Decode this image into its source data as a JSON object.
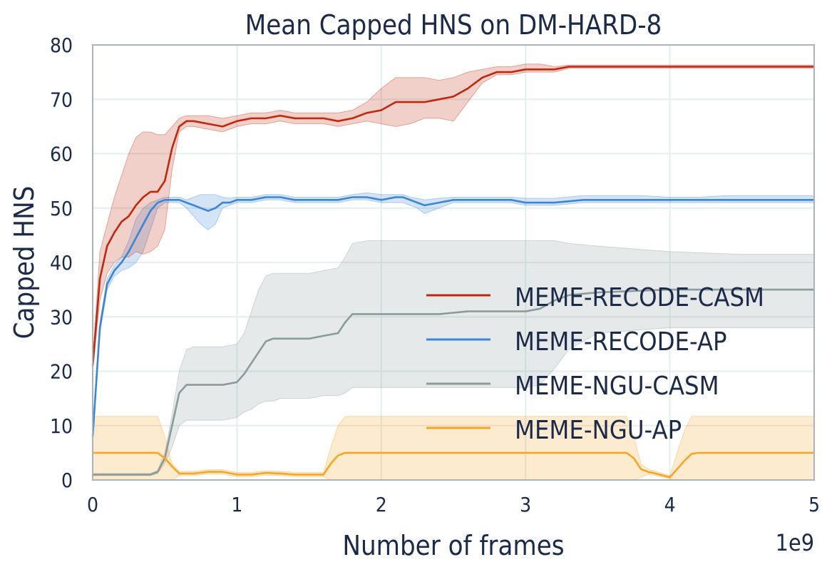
{
  "chart_data": {
    "type": "line",
    "title": "Mean Capped HNS on DM-HARD-8",
    "xlabel": "Number of frames",
    "ylabel": "Capped HNS",
    "x_scale_label": "1e9",
    "xlim": [
      0,
      5
    ],
    "ylim": [
      0,
      80
    ],
    "x_ticks": [
      0,
      1,
      2,
      3,
      4,
      5
    ],
    "y_ticks": [
      0,
      10,
      20,
      30,
      40,
      50,
      60,
      70,
      80
    ],
    "grid": true,
    "legend_position": "center-right",
    "series": [
      {
        "name": "MEME-RECODE-CASM",
        "color": "#c0280e",
        "x": [
          0,
          0.05,
          0.1,
          0.15,
          0.2,
          0.25,
          0.3,
          0.35,
          0.4,
          0.45,
          0.5,
          0.55,
          0.6,
          0.65,
          0.7,
          0.8,
          0.9,
          1.0,
          1.1,
          1.2,
          1.3,
          1.4,
          1.5,
          1.6,
          1.7,
          1.8,
          1.9,
          2.0,
          2.1,
          2.2,
          2.3,
          2.4,
          2.5,
          2.6,
          2.7,
          2.8,
          2.9,
          3.0,
          3.1,
          3.2,
          3.3,
          3.5,
          4.0,
          4.5,
          5.0
        ],
        "values": [
          21,
          37,
          43,
          45.5,
          47.5,
          48.5,
          50.5,
          52,
          53,
          53,
          55,
          61,
          65,
          66,
          66,
          65.5,
          65,
          66,
          66.5,
          66.5,
          67,
          66.5,
          66.5,
          66.5,
          66,
          66.5,
          67.5,
          68,
          69.5,
          69.5,
          69.5,
          70,
          70.5,
          72,
          74,
          75,
          75,
          75.5,
          75.5,
          75.5,
          76,
          76,
          76,
          76,
          76
        ],
        "upper": [
          22,
          42,
          47,
          52,
          56,
          60,
          63,
          64,
          64,
          63.5,
          63.5,
          65,
          66.5,
          67,
          67,
          67,
          66.5,
          67,
          67.5,
          67.5,
          68,
          67.5,
          67.5,
          67.5,
          67.5,
          68,
          69.5,
          72,
          74,
          74,
          74,
          73.5,
          74,
          75,
          75.5,
          76,
          76,
          76.5,
          76.5,
          76,
          76.3,
          76.3,
          76.3,
          76.3,
          76.3
        ],
        "lower": [
          20,
          33,
          38,
          40,
          41,
          41,
          42,
          41.5,
          42,
          43,
          46,
          57,
          64,
          65,
          65,
          64.5,
          64,
          65,
          65.5,
          65.5,
          66,
          65.5,
          65.5,
          65.5,
          65,
          65.5,
          66,
          65.5,
          65,
          65.5,
          66.5,
          66.5,
          66,
          69.5,
          73,
          74.5,
          74.5,
          75,
          75,
          75,
          75.7,
          75.7,
          75.7,
          75.7,
          75.7
        ]
      },
      {
        "name": "MEME-RECODE-AP",
        "color": "#3a86d6",
        "x": [
          0,
          0.05,
          0.1,
          0.15,
          0.2,
          0.25,
          0.3,
          0.35,
          0.4,
          0.45,
          0.5,
          0.55,
          0.6,
          0.65,
          0.7,
          0.75,
          0.8,
          0.85,
          0.9,
          0.95,
          1.0,
          1.1,
          1.2,
          1.3,
          1.4,
          1.5,
          1.6,
          1.7,
          1.8,
          1.9,
          2.0,
          2.1,
          2.15,
          2.2,
          2.25,
          2.3,
          2.4,
          2.5,
          2.6,
          2.7,
          2.8,
          2.9,
          3.0,
          3.2,
          3.4,
          3.6,
          3.8,
          4.0,
          4.2,
          4.4,
          4.6,
          4.8,
          5.0
        ],
        "values": [
          8,
          28,
          36,
          38.5,
          40,
          42,
          44.5,
          47,
          49.5,
          51,
          51.5,
          51.5,
          51.5,
          51,
          50.5,
          50,
          49.5,
          50,
          51,
          51,
          51.5,
          51.5,
          52,
          52,
          51.5,
          51.5,
          51.5,
          51.5,
          52,
          52,
          51.5,
          52,
          52,
          51.5,
          51,
          50.5,
          51,
          51.5,
          51.5,
          51.5,
          51.5,
          51.5,
          51,
          51,
          51.5,
          51.5,
          51.5,
          51.5,
          51.5,
          51.5,
          51.5,
          51.5,
          51.5
        ],
        "upper": [
          9,
          29,
          37,
          39.5,
          41,
          44,
          48,
          50,
          51,
          51.5,
          52,
          52,
          52,
          51.5,
          52,
          52.5,
          52.5,
          52.5,
          52,
          51.8,
          52,
          52,
          52.5,
          52.5,
          52,
          52,
          52,
          52,
          52.5,
          52.8,
          52.5,
          52.5,
          52.5,
          52,
          51.8,
          51.5,
          51.8,
          52,
          52,
          52,
          52,
          52,
          51.8,
          51.8,
          52.3,
          52.3,
          52.3,
          52,
          52,
          52.3,
          52.3,
          52.3,
          52.3
        ],
        "lower": [
          7,
          27,
          35,
          37.5,
          38.5,
          39,
          40,
          42,
          46,
          50,
          51,
          51,
          51,
          50,
          48.5,
          47,
          46,
          47,
          50,
          50.5,
          51,
          51,
          51.5,
          51.5,
          51,
          51,
          51,
          51,
          51.5,
          51.5,
          51,
          51,
          51,
          50.5,
          50,
          49,
          50,
          51,
          51,
          51,
          51,
          51,
          50.5,
          50.5,
          51,
          51,
          51,
          51,
          51,
          51,
          51,
          51,
          51
        ]
      },
      {
        "name": "MEME-NGU-CASM",
        "color": "#8a9b9b",
        "x": [
          0,
          0.2,
          0.4,
          0.45,
          0.5,
          0.55,
          0.6,
          0.65,
          0.7,
          0.8,
          0.9,
          1.0,
          1.05,
          1.1,
          1.15,
          1.2,
          1.25,
          1.3,
          1.4,
          1.5,
          1.6,
          1.7,
          1.75,
          1.8,
          1.9,
          2.0,
          2.2,
          2.4,
          2.6,
          2.8,
          3.0,
          3.1,
          3.2,
          3.3,
          3.5,
          4.0,
          4.5,
          5.0
        ],
        "values": [
          1,
          1,
          1,
          1.5,
          4,
          10,
          16,
          17.5,
          17.5,
          17.5,
          17.5,
          18,
          19.5,
          21.5,
          23.5,
          25.5,
          26,
          26,
          26,
          26,
          26.5,
          27,
          29,
          30.5,
          30.5,
          30.5,
          30.5,
          30.5,
          31,
          31,
          31,
          31.5,
          33,
          34,
          34.5,
          35,
          35,
          35
        ],
        "upper": [
          1.2,
          1.2,
          1.2,
          1.8,
          5,
          12,
          20,
          24,
          24.5,
          24.5,
          24.5,
          25,
          27,
          31,
          35,
          37.5,
          38,
          38,
          38,
          38,
          38.5,
          39,
          41,
          43.5,
          44,
          44,
          44,
          44,
          44,
          44,
          44,
          44,
          44,
          43.5,
          43,
          42,
          41.5,
          41.5
        ],
        "lower": [
          0.8,
          0.8,
          0.8,
          1.2,
          3,
          6,
          10,
          11,
          11,
          11,
          11,
          11.5,
          12.5,
          13,
          14,
          14.5,
          14.5,
          15,
          15,
          15,
          15.5,
          15.5,
          16,
          17,
          17,
          17,
          17,
          17,
          17,
          17,
          17,
          17.5,
          20.5,
          24,
          27,
          28,
          28,
          28
        ]
      },
      {
        "name": "MEME-NGU-AP",
        "color": "#f5a623",
        "x": [
          0,
          0.1,
          0.2,
          0.3,
          0.4,
          0.45,
          0.5,
          0.55,
          0.6,
          0.7,
          0.8,
          0.9,
          1.0,
          1.1,
          1.2,
          1.3,
          1.4,
          1.5,
          1.6,
          1.65,
          1.7,
          1.75,
          1.8,
          2.0,
          2.5,
          3.0,
          3.5,
          3.7,
          3.75,
          3.8,
          3.85,
          3.9,
          4.0,
          4.05,
          4.1,
          4.15,
          4.2,
          4.5,
          5.0
        ],
        "values": [
          5,
          5,
          5,
          5,
          5,
          5,
          4,
          2.5,
          1.2,
          1.2,
          1.5,
          1.5,
          1.0,
          1.0,
          1.3,
          1.2,
          1.0,
          1.0,
          1.0,
          3,
          4.5,
          5,
          5,
          5,
          5,
          5,
          5,
          5,
          4,
          2,
          1.5,
          1.2,
          0.5,
          2,
          3.5,
          4.8,
          5,
          5,
          5
        ],
        "upper": [
          11.7,
          11.7,
          11.7,
          11.7,
          11.7,
          11.7,
          8,
          3,
          1.6,
          1.6,
          1.9,
          1.9,
          1.4,
          1.4,
          1.7,
          1.6,
          1.4,
          1.4,
          1.4,
          6,
          10,
          11.7,
          11.7,
          11.7,
          11.7,
          11.7,
          11.7,
          11.7,
          8,
          3,
          2,
          1.6,
          0.8,
          5,
          9,
          11.7,
          11.7,
          11.7,
          11.7
        ],
        "lower": [
          0,
          0,
          0,
          0,
          0,
          0,
          0,
          0,
          0.8,
          0.8,
          1.1,
          1.1,
          0.6,
          0.6,
          0.9,
          0.8,
          0.6,
          0.6,
          0.6,
          0,
          0,
          0,
          0,
          0,
          0,
          0,
          0,
          0,
          0,
          0.5,
          1,
          0.8,
          0.2,
          0,
          0,
          0,
          0,
          0,
          0
        ]
      }
    ]
  }
}
